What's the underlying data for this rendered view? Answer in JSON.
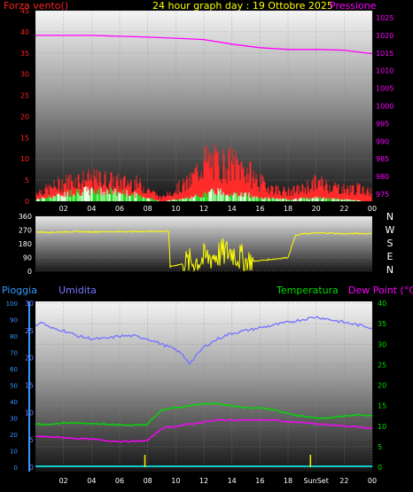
{
  "colors": {
    "wind": "#ff0000",
    "gust": "#ff2a2a",
    "wind_avg": "#22dd22",
    "wind_low": "#e8ffe8",
    "pressure": "#ff00ff",
    "direction": "#ffff00",
    "rain": "#3399ff",
    "humidity": "#7777ff",
    "temperature": "#00dd00",
    "dew_point": "#ff00ff",
    "axis_text": "#ffffff",
    "grid": "#888888"
  },
  "chart_data": [
    {
      "type": "line",
      "title": "24 hour graph day : 19 Ottobre 2025",
      "left_axis_label": "Forza vento()",
      "right_axis_label": "Pressione",
      "x_ticks": [
        "02",
        "04",
        "06",
        "08",
        "10",
        "12",
        "14",
        "16",
        "18",
        "20",
        "22",
        "00"
      ],
      "y_left_ticks": [
        "0",
        "5",
        "10",
        "15",
        "20",
        "25",
        "30",
        "35",
        "40",
        "45"
      ],
      "y_left_lim": [
        0,
        45
      ],
      "y_right_ticks": [
        "975",
        "980",
        "985",
        "990",
        "995",
        "1000",
        "1005",
        "1010",
        "1015",
        "1020",
        "1025"
      ],
      "y_right_lim": [
        973,
        1027
      ],
      "x_hours_lim": [
        0,
        24
      ],
      "pressure": {
        "x": [
          0,
          4,
          8,
          10,
          12,
          14,
          16,
          18,
          20,
          22,
          24
        ],
        "y": [
          1020,
          1020,
          1019.5,
          1019.2,
          1018.8,
          1017.5,
          1016.5,
          1016,
          1016,
          1015.8,
          1014.8
        ]
      },
      "wind_gust_envelope": {
        "x": [
          0,
          1,
          2,
          3,
          4,
          5,
          6,
          7,
          8,
          9,
          10,
          11,
          12,
          13,
          14,
          15,
          16,
          17,
          18,
          19,
          20,
          21,
          22,
          23,
          24
        ],
        "y": [
          3,
          4,
          6,
          7,
          7,
          7,
          6,
          6,
          4,
          1,
          4,
          6,
          13,
          12,
          12,
          10,
          6,
          4,
          3,
          4,
          6,
          5,
          4,
          4,
          3
        ]
      },
      "wind_avg_envelope": {
        "x": [
          0,
          2,
          3,
          5,
          7,
          8,
          9,
          11,
          12,
          13,
          14,
          15,
          16,
          18,
          20,
          22,
          24
        ],
        "y": [
          0.5,
          2,
          3,
          3,
          2,
          1,
          0,
          1,
          2,
          3,
          2,
          2,
          1,
          0.5,
          1,
          0.5,
          0
        ]
      }
    },
    {
      "type": "line",
      "y_ticks": [
        "360",
        "270",
        "180",
        "90",
        "0"
      ],
      "y_lim": [
        0,
        360
      ],
      "compass_labels": [
        "N",
        "W",
        "S",
        "E",
        "N"
      ],
      "direction": {
        "x": [
          0,
          1,
          2,
          3,
          4,
          5,
          6,
          7,
          8,
          9.5,
          9.6,
          10,
          11,
          12,
          13,
          14,
          15,
          16,
          17,
          18,
          18.5,
          19,
          20,
          21,
          22,
          23,
          24
        ],
        "y": [
          258,
          255,
          258,
          260,
          258,
          260,
          260,
          260,
          262,
          262,
          30,
          40,
          55,
          80,
          110,
          130,
          60,
          70,
          80,
          90,
          230,
          245,
          250,
          250,
          245,
          248,
          245
        ]
      }
    },
    {
      "type": "line",
      "left_labels": [
        "Pioggia",
        "Umidita"
      ],
      "right_labels": [
        "Temperatura",
        "Dew Point (°C)"
      ],
      "x_ticks": [
        "02",
        "04",
        "06",
        "08",
        "10",
        "12",
        "14",
        "16",
        "18",
        "SunSet",
        "22",
        "00"
      ],
      "rain_ticks": [
        "0",
        "10",
        "20",
        "30",
        "40",
        "50",
        "60",
        "70",
        "80",
        "90",
        "100"
      ],
      "humidity_ticks": [
        "0",
        "5",
        "10",
        "15",
        "20",
        "25",
        "30"
      ],
      "temp_ticks": [
        "0",
        "5",
        "10",
        "15",
        "20",
        "25",
        "30",
        "35",
        "40"
      ],
      "humidity_lim": [
        0,
        30
      ],
      "temp_lim": [
        0,
        40
      ],
      "humidity": {
        "x": [
          0,
          0.5,
          1,
          2,
          3,
          4,
          5,
          6,
          7,
          8,
          9,
          10,
          10.5,
          11,
          11.5,
          12,
          13,
          14,
          15,
          16,
          17,
          18,
          19,
          20,
          21,
          22,
          23,
          24
        ],
        "y": [
          26,
          26.5,
          25.5,
          25,
          24,
          23.5,
          23.5,
          24,
          24,
          23.5,
          22.5,
          21.5,
          20.5,
          19,
          20.5,
          22,
          23.5,
          24.5,
          25,
          25.5,
          26,
          26.5,
          27,
          27.5,
          27,
          26.5,
          26,
          25.5
        ]
      },
      "temperature": {
        "x": [
          0,
          1,
          2,
          3,
          4,
          5,
          6,
          7,
          8,
          8.5,
          9,
          10,
          11,
          12,
          13,
          14,
          15,
          16,
          17,
          18,
          19,
          20,
          21,
          22,
          23,
          24
        ],
        "y": [
          10.5,
          10.5,
          10.8,
          10.8,
          10.5,
          10.5,
          10.3,
          10.3,
          10.5,
          12.5,
          14,
          14.5,
          15,
          15.5,
          15.5,
          15,
          14.5,
          14.5,
          14,
          13,
          12.5,
          12,
          12,
          12.5,
          12.7,
          12.5
        ]
      },
      "dew_point": {
        "x": [
          0,
          1,
          2,
          3,
          4,
          5,
          6,
          7,
          8,
          8.5,
          9,
          10,
          11,
          12,
          13,
          14,
          15,
          16,
          17,
          18,
          19,
          20,
          21,
          22,
          23,
          24
        ],
        "y": [
          7.5,
          7.4,
          7.2,
          7,
          6.8,
          6.5,
          6.3,
          6.3,
          6.5,
          8,
          9.5,
          10,
          10.5,
          11,
          11.5,
          11.5,
          11.5,
          11.5,
          11.5,
          11,
          11,
          10.5,
          10.3,
          10,
          9.8,
          9.5
        ]
      },
      "rain": {
        "x": [
          0,
          24
        ],
        "y": [
          0,
          0
        ]
      },
      "markers_hours": [
        7.8,
        19.6
      ]
    }
  ]
}
